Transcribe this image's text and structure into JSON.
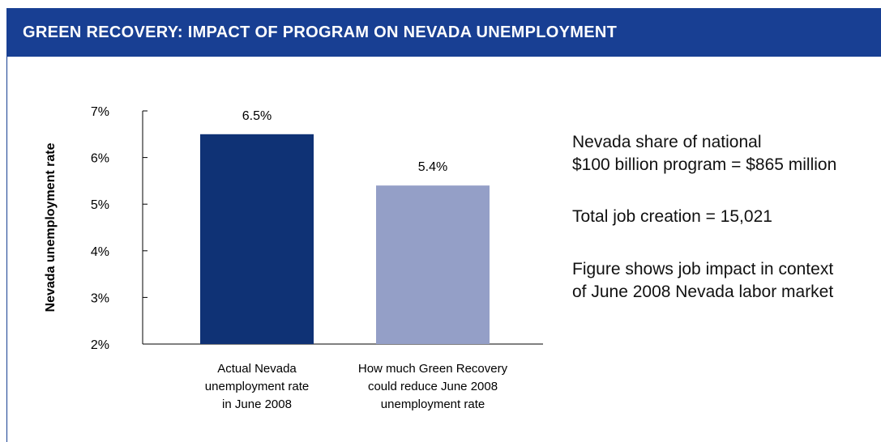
{
  "header": {
    "title": "GREEN RECOVERY: IMPACT OF PROGRAM ON NEVADA UNEMPLOYMENT"
  },
  "colors": {
    "header_bg": "#183f93",
    "bar_actual": "#0f3275",
    "bar_reduced": "#949fc7"
  },
  "side_notes": {
    "note1_line1": "Nevada share of national",
    "note1_line2": "$100 billion program = $865 million",
    "note2": "Total job creation = 15,021",
    "note3_line1": "Figure shows job impact in context",
    "note3_line2": "of June 2008 Nevada labor market"
  },
  "chart_data": {
    "type": "bar",
    "title": "",
    "xlabel": "",
    "ylabel": "Nevada unemployment rate",
    "ylim": [
      2,
      7
    ],
    "yticks": [
      {
        "value": 7,
        "label": "7%"
      },
      {
        "value": 6,
        "label": "6%"
      },
      {
        "value": 5,
        "label": "5%"
      },
      {
        "value": 4,
        "label": "4%"
      },
      {
        "value": 3,
        "label": "3%"
      },
      {
        "value": 2,
        "label": "2%"
      }
    ],
    "categories": [
      [
        "Actual Nevada",
        "unemployment rate",
        "in June 2008"
      ],
      [
        "How much Green Recovery",
        "could reduce June 2008",
        "unemployment rate"
      ]
    ],
    "values": [
      6.5,
      5.4
    ],
    "value_labels": [
      "6.5%",
      "5.4%"
    ],
    "grid": false,
    "legend": "none"
  }
}
